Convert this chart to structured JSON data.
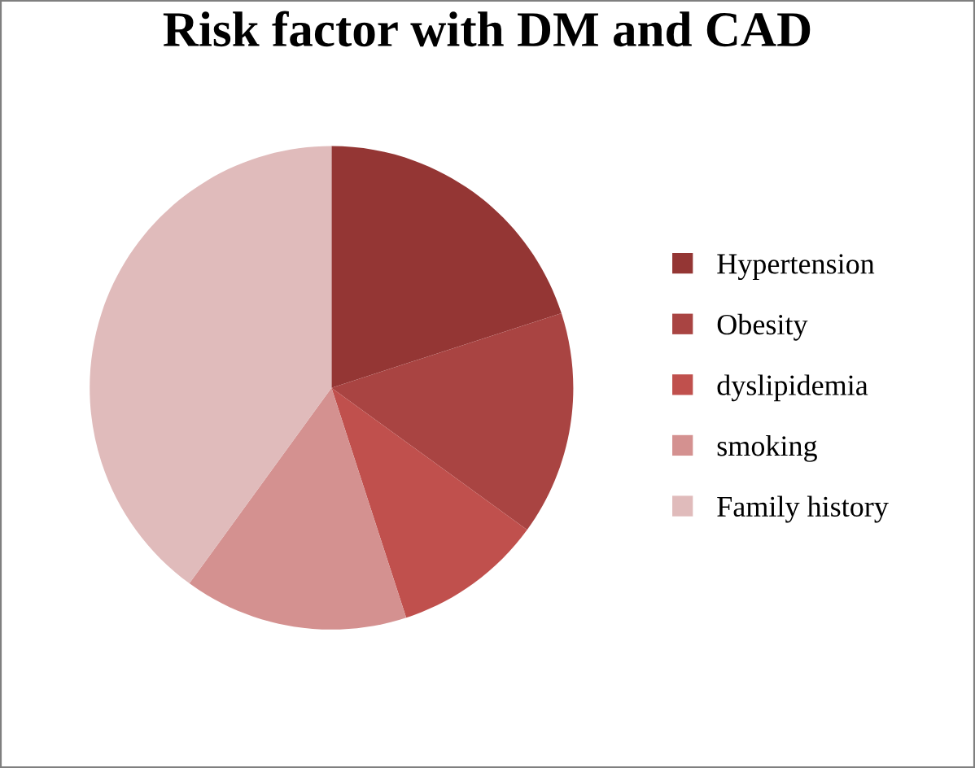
{
  "chart_data": {
    "type": "pie",
    "title": "Risk factor with DM and CAD",
    "categories": [
      "Hypertension",
      "Obesity",
      "dyslipidemia",
      "smoking",
      "Family history"
    ],
    "values": [
      20,
      15,
      10,
      15,
      40
    ],
    "colors": [
      "#943634",
      "#a94442",
      "#c0504d",
      "#d49190",
      "#e0bbbb"
    ],
    "legend": "right"
  }
}
